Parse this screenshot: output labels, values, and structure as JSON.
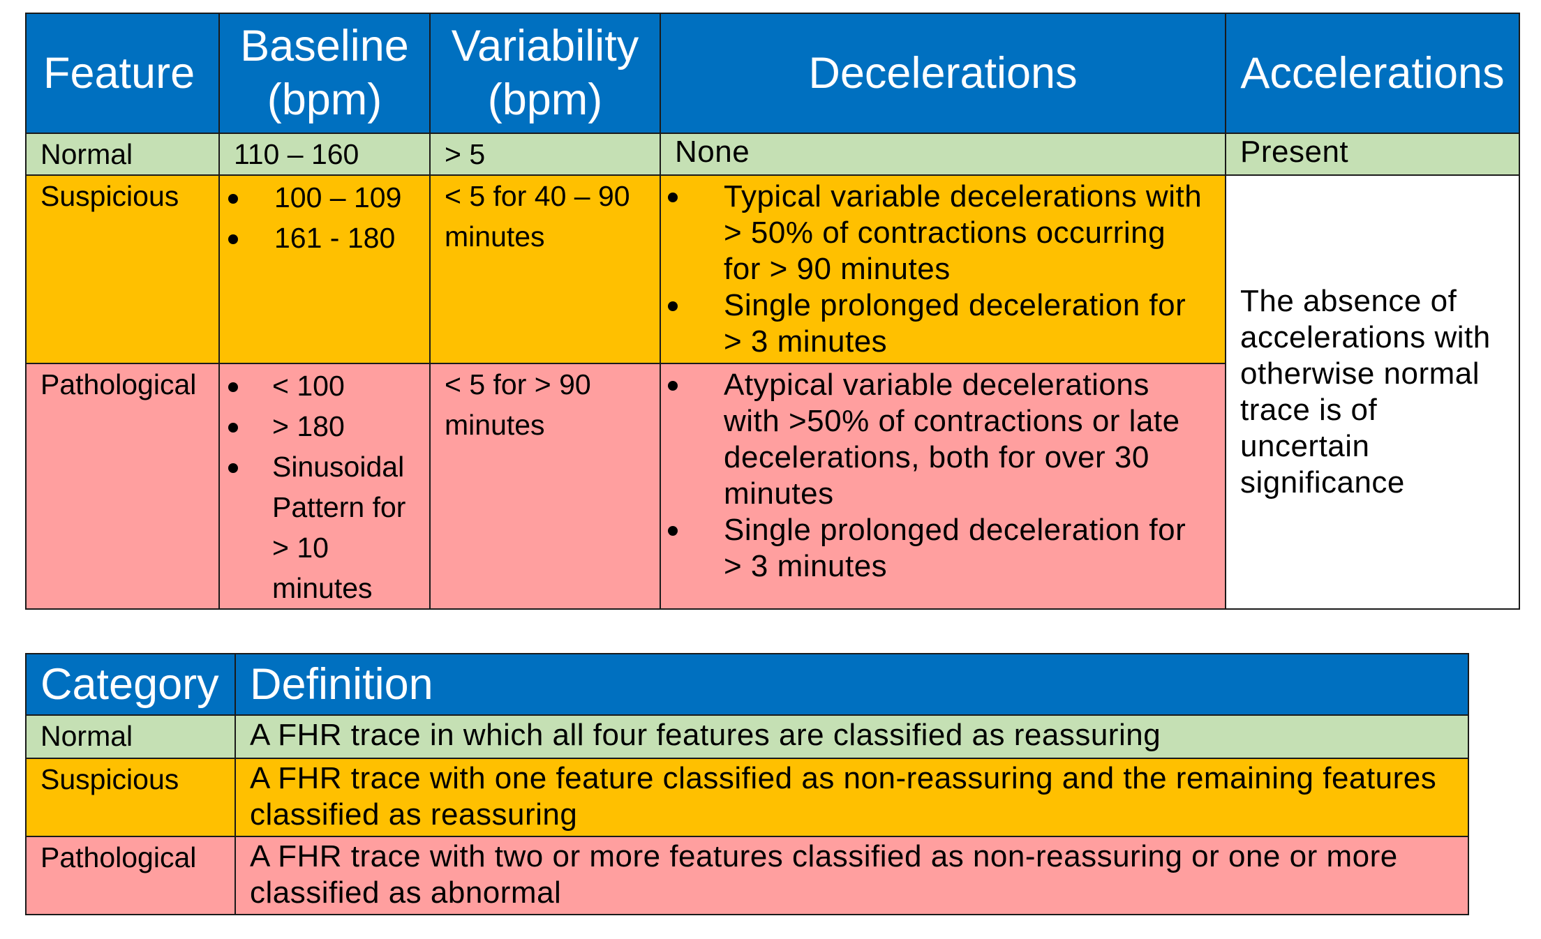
{
  "features_table": {
    "headers": [
      "Feature",
      "Baseline\n(bpm)",
      "Variability\n(bpm)",
      "Decelerations",
      "Accelerations"
    ],
    "normal": {
      "label": "Normal",
      "baseline": "110 – 160",
      "variability": "> 5",
      "decelerations": "None",
      "accelerations": "Present"
    },
    "suspicious": {
      "label": "Suspicious",
      "baseline": [
        "100 – 109",
        "161 - 180"
      ],
      "variability": "< 5 for 40 – 90 minutes",
      "decelerations": [
        "Typical variable decelerations with > 50% of contractions occurring for > 90 minutes",
        "Single prolonged deceleration for > 3 minutes"
      ]
    },
    "pathological": {
      "label": "Pathological",
      "baseline": [
        "< 100",
        "> 180",
        "Sinusoidal Pattern for > 10 minutes"
      ],
      "variability": "< 5 for > 90 minutes",
      "decelerations": [
        "Atypical variable decelerations with >50% of contractions or late decelerations, both for over 30 minutes",
        "Single prolonged deceleration for > 3 minutes"
      ]
    },
    "accelerations_note": "The absence of accelerations with otherwise normal trace is of uncertain significance"
  },
  "categories_table": {
    "headers": [
      "Category",
      "Definition"
    ],
    "rows": [
      {
        "category": "Normal",
        "definition": "A FHR trace in which all four features are classified as reassuring"
      },
      {
        "category": "Suspicious",
        "definition": "A FHR trace with one feature classified as non-reassuring and the remaining features classified as reassuring"
      },
      {
        "category": "Pathological",
        "definition": "A FHR trace with two or more features classified as non-reassuring or one or more classified as abnormal"
      }
    ]
  },
  "colors": {
    "header_blue": "#0070c0",
    "normal_green": "#c5e0b4",
    "suspicious_amber": "#ffc000",
    "pathological_pink": "#ff9f9f"
  }
}
